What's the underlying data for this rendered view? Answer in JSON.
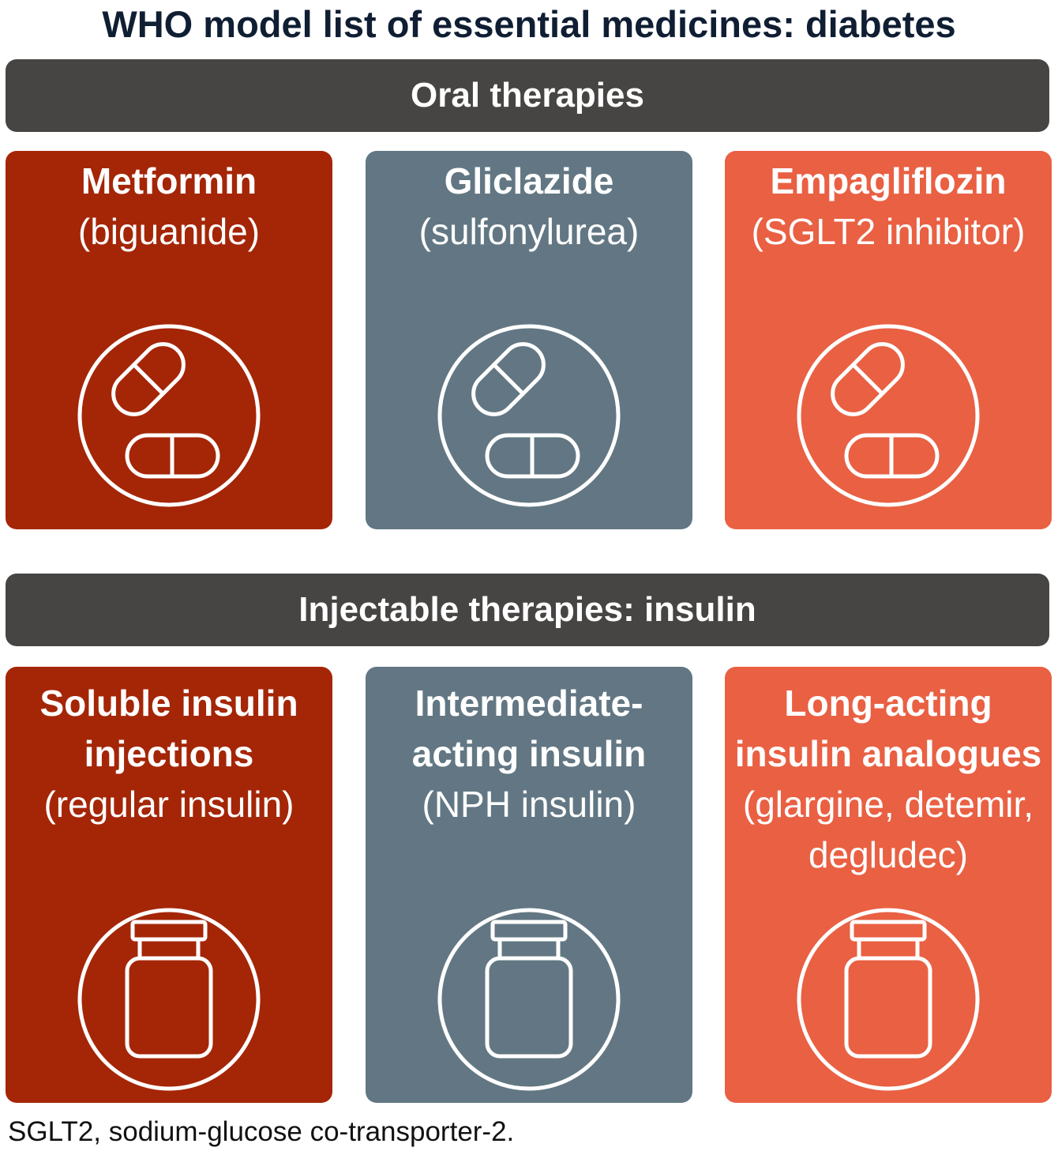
{
  "title": "WHO model list of essential medicines: diabetes",
  "sections": [
    {
      "label": "Oral therapies",
      "cards": [
        {
          "name": "Metformin",
          "sub": "(biguanide)",
          "color": "#a42607",
          "icon": "pills-icon"
        },
        {
          "name": "Gliclazide",
          "sub": "(sulfonylurea)",
          "color": "#627783",
          "icon": "pills-icon"
        },
        {
          "name": "Empagliflozin",
          "sub": "(SGLT2 inhibitor)",
          "color": "#e96043",
          "icon": "pills-icon"
        }
      ]
    },
    {
      "label": "Injectable therapies: insulin",
      "cards": [
        {
          "name_lines": [
            "Soluble insulin",
            "injections"
          ],
          "sub_lines": [
            "(regular insulin)"
          ],
          "color": "#a42607",
          "icon": "vial-icon"
        },
        {
          "name_lines": [
            "Intermediate-",
            "acting insulin"
          ],
          "sub_lines": [
            "(NPH insulin)"
          ],
          "color": "#627783",
          "icon": "vial-icon"
        },
        {
          "name_lines": [
            "Long-acting",
            "insulin analogues"
          ],
          "sub_lines": [
            "(glargine, detemir,",
            "degludec)"
          ],
          "color": "#e96043",
          "icon": "vial-icon"
        }
      ]
    }
  ],
  "footnote": "SGLT2, sodium-glucose co-transporter-2.",
  "colors": {
    "title_text": "#0f1e33",
    "section_bar": "#474543",
    "dark_red": "#a42607",
    "slate": "#627783",
    "coral": "#e96043"
  }
}
